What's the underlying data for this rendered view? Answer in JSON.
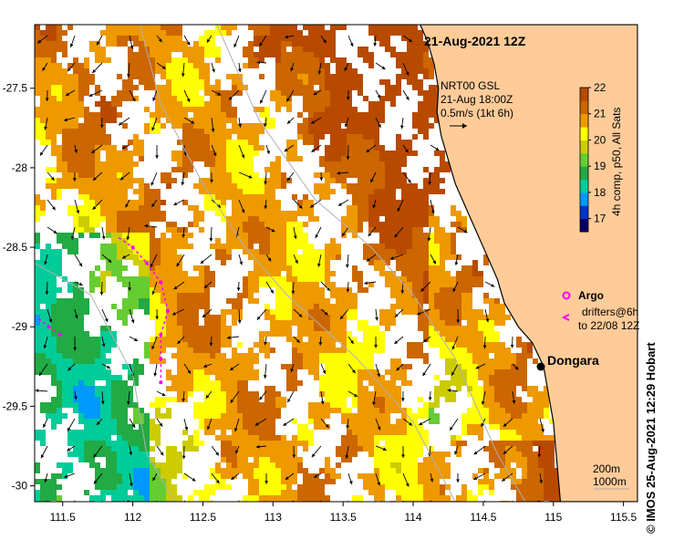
{
  "map": {
    "date_label": "21-Aug-2021 12Z",
    "current_label": {
      "line1": "NRT00 GSL",
      "line2": "21-Aug 18:00Z",
      "line3": "0.5m/s (1kt 6h)"
    },
    "colorbar": {
      "label": "4h comp, p50, All Sats",
      "ticks": [
        "22",
        "21",
        "20",
        "19",
        "18",
        "17"
      ],
      "min": 16.5,
      "max": 22,
      "colors": [
        "#000066",
        "#0033cc",
        "#0099ff",
        "#00cc99",
        "#22aa44",
        "#66cc33",
        "#cccc00",
        "#ffff00",
        "#ee9900",
        "#cc6600",
        "#b84a00"
      ]
    },
    "legend": {
      "argo_label": "Argo",
      "drifters_line1": "drifters@6h",
      "drifters_line2": "to 22/08 12Z",
      "argo_color": "#ff00ff"
    },
    "town": {
      "name": "Dongara",
      "lon": 114.93,
      "lat": -29.25
    },
    "scale": {
      "contour1": "200m",
      "contour2": "1000m"
    },
    "x_ticks": [
      "111.5",
      "112",
      "112.5",
      "113",
      "113.5",
      "114",
      "114.5",
      "115",
      "115.5"
    ],
    "y_ticks": [
      "-27.5",
      "-28",
      "-28.5",
      "-29",
      "-29.5",
      "-30"
    ],
    "x_range": [
      111.3,
      115.6
    ],
    "y_range": [
      -30.1,
      -27.1
    ],
    "credit": "© IMOS 25-Aug-2021 12:29 Hobart",
    "land_color": "#ffcc99",
    "coastline": [
      [
        114.05,
        -27.1
      ],
      [
        114.1,
        -27.2
      ],
      [
        114.15,
        -27.35
      ],
      [
        114.18,
        -27.5
      ],
      [
        114.17,
        -27.65
      ],
      [
        114.2,
        -27.8
      ],
      [
        114.25,
        -27.95
      ],
      [
        114.3,
        -28.1
      ],
      [
        114.4,
        -28.3
      ],
      [
        114.5,
        -28.5
      ],
      [
        114.6,
        -28.7
      ],
      [
        114.65,
        -28.85
      ],
      [
        114.75,
        -29.0
      ],
      [
        114.85,
        -29.1
      ],
      [
        114.93,
        -29.25
      ],
      [
        114.97,
        -29.45
      ],
      [
        115.0,
        -29.6
      ],
      [
        115.02,
        -29.8
      ],
      [
        115.04,
        -30.0
      ],
      [
        115.05,
        -30.1
      ]
    ]
  }
}
